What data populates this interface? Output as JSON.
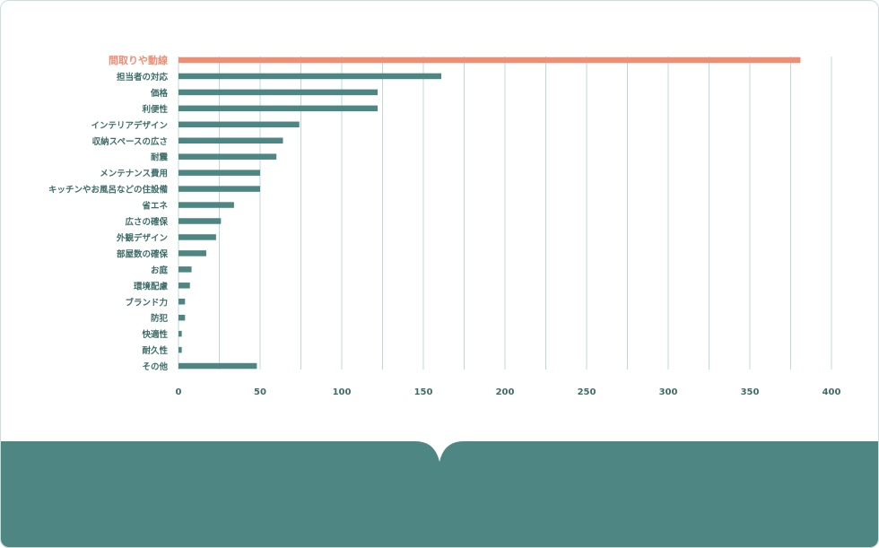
{
  "colors": {
    "bar": "#4e8683",
    "highlight_bar": "#ee8e74",
    "grid": "#bcd9d6",
    "label": "#3e6d6a",
    "highlight_label": "#ee8e74",
    "footer": "#4e8683"
  },
  "chart_data": {
    "type": "bar",
    "orientation": "horizontal",
    "categories": [
      "間取りや動線",
      "担当者の対応",
      "価格",
      "利便性",
      "インテリアデザイン",
      "収納スペースの広さ",
      "耐震",
      "メンテナンス費用",
      "キッチンやお風呂などの住設備",
      "省エネ",
      "広さの確保",
      "外観デザイン",
      "部屋数の確保",
      "お庭",
      "環境配慮",
      "ブランド力",
      "防犯",
      "快適性",
      "耐久性",
      "その他"
    ],
    "values": [
      381,
      161,
      122,
      122,
      74,
      64,
      60,
      50,
      50,
      34,
      26,
      23,
      17,
      8,
      7,
      4,
      4,
      2,
      2,
      48
    ],
    "highlight_index": 0,
    "x_ticks": [
      "0",
      "50",
      "100",
      "150",
      "200",
      "250",
      "300",
      "350",
      "400"
    ],
    "xlim": [
      0,
      400
    ],
    "minor_gridlines_every": 25,
    "grid": true,
    "title": "",
    "xlabel": "",
    "ylabel": ""
  }
}
